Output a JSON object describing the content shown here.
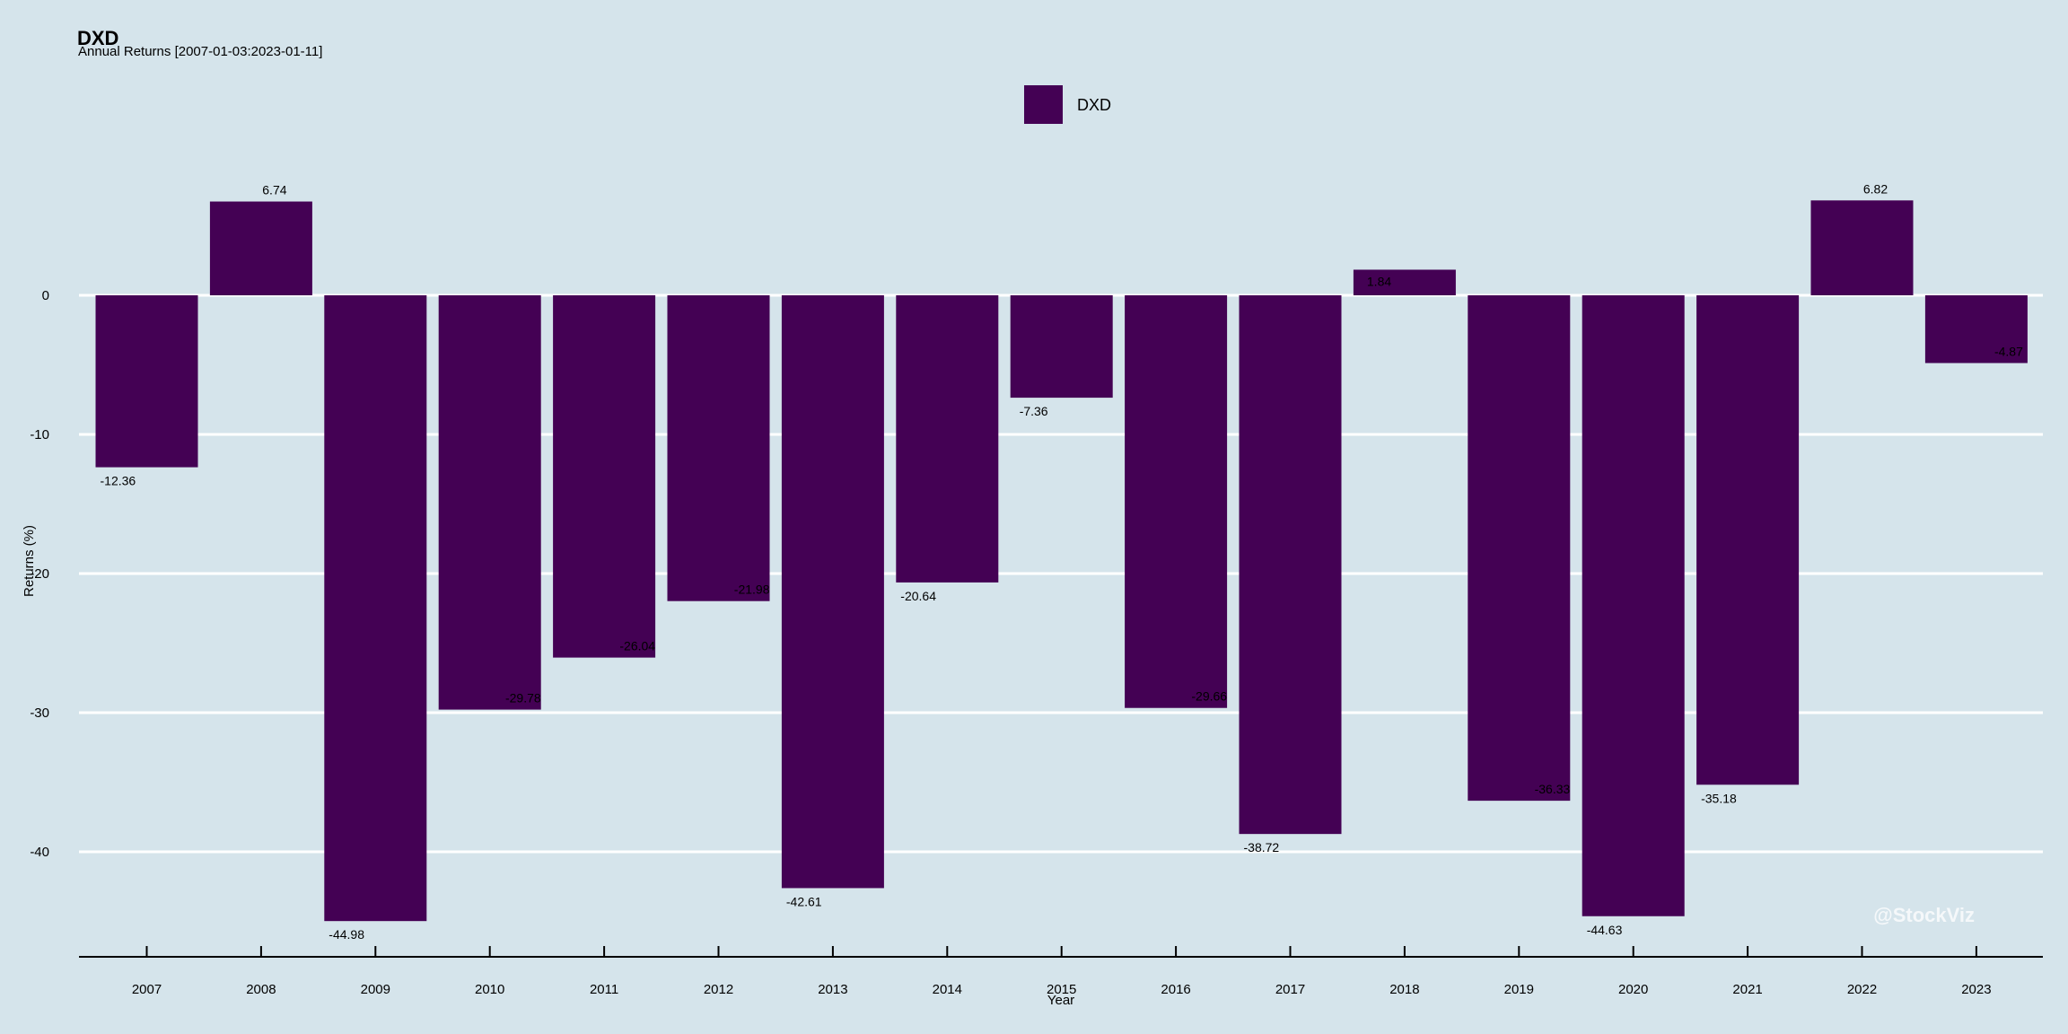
{
  "header": {
    "title": "DXD",
    "subtitle": "Annual Returns [2007-01-03:2023-01-11]"
  },
  "legend": {
    "label": "DXD",
    "position": "top-center"
  },
  "watermark": "@StockViz",
  "colors": {
    "background": "#d5e4eb",
    "bar": "#440154",
    "grid": "#ffffff",
    "axis": "#000000"
  },
  "chart_data": {
    "type": "bar",
    "title": "DXD",
    "subtitle": "Annual Returns [2007-01-03:2023-01-11]",
    "xlabel": "Year",
    "ylabel": "Returns (%)",
    "categories": [
      "2007",
      "2008",
      "2009",
      "2010",
      "2011",
      "2012",
      "2013",
      "2014",
      "2015",
      "2016",
      "2017",
      "2018",
      "2019",
      "2020",
      "2021",
      "2022",
      "2023"
    ],
    "series": [
      {
        "name": "DXD",
        "values": [
          -12.36,
          6.74,
          -44.98,
          -29.78,
          -26.04,
          -21.98,
          -42.61,
          -20.64,
          -7.36,
          -29.66,
          -38.72,
          1.84,
          -36.33,
          -44.63,
          -35.18,
          6.82,
          -4.87
        ]
      }
    ],
    "data_labels": [
      "-12.36",
      "6.74",
      "-44.98",
      "-29.78",
      "-26.04",
      "-21.98",
      "-42.61",
      "-20.64",
      "-7.36",
      "-29.66",
      "-38.72",
      "1.84",
      "-36.33",
      "-44.63",
      "-35.18",
      "6.82",
      "-4.87"
    ],
    "yticks": [
      "0",
      "-10",
      "-20",
      "-30",
      "-40"
    ],
    "ytick_values": [
      0,
      -10,
      -20,
      -30,
      -40
    ],
    "ylim": [
      -47.5,
      13.5
    ],
    "grid": "horizontal",
    "legend_position": "top-center"
  }
}
